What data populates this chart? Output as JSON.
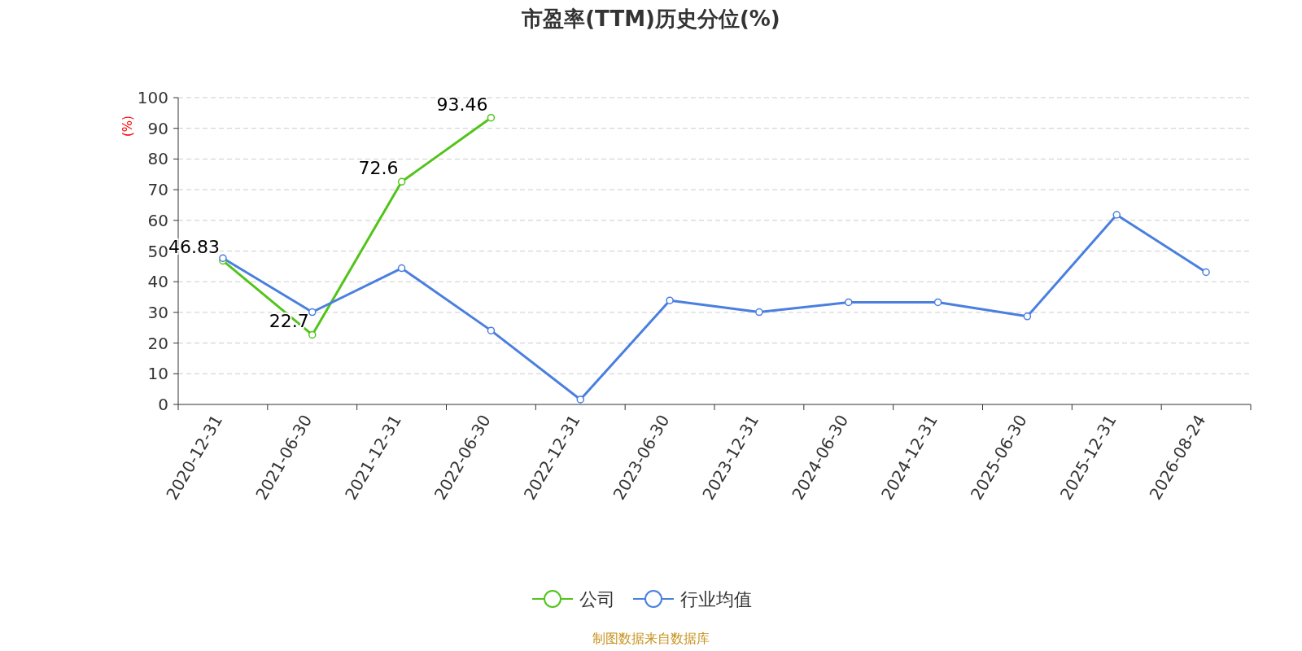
{
  "chart_data": {
    "type": "line",
    "title": "市盈率(TTM)历史分位(%)",
    "ylabel": "(%)",
    "categories": [
      "2020-12-31",
      "2021-06-30",
      "2021-12-31",
      "2022-06-30",
      "2022-12-31",
      "2023-06-30",
      "2023-12-31",
      "2024-06-30",
      "2024-12-31",
      "2025-06-30",
      "2025-12-31",
      "2026-08-24"
    ],
    "series": [
      {
        "name": "公司",
        "color": "#52c41a",
        "values": [
          46.83,
          22.7,
          72.6,
          93.46,
          null,
          null,
          null,
          null,
          null,
          null,
          null,
          null
        ],
        "value_labels": [
          "46.83",
          "22.7",
          "72.6",
          "93.46",
          null,
          null,
          null,
          null,
          null,
          null,
          null,
          null
        ]
      },
      {
        "name": "行业均值",
        "color": "#4a7fe0",
        "values": [
          47.7,
          30.1,
          44.4,
          24.1,
          1.6,
          33.9,
          30.1,
          33.3,
          33.3,
          28.7,
          61.8,
          43.1
        ]
      }
    ],
    "ylim": [
      0,
      100
    ],
    "yticks": [
      0,
      10,
      20,
      30,
      40,
      50,
      60,
      70,
      80,
      90,
      100
    ],
    "grid": "y",
    "legend": "bottom",
    "marker": "circle",
    "line_style": "solid",
    "annotations": [
      "制图数据来自数据库"
    ]
  }
}
